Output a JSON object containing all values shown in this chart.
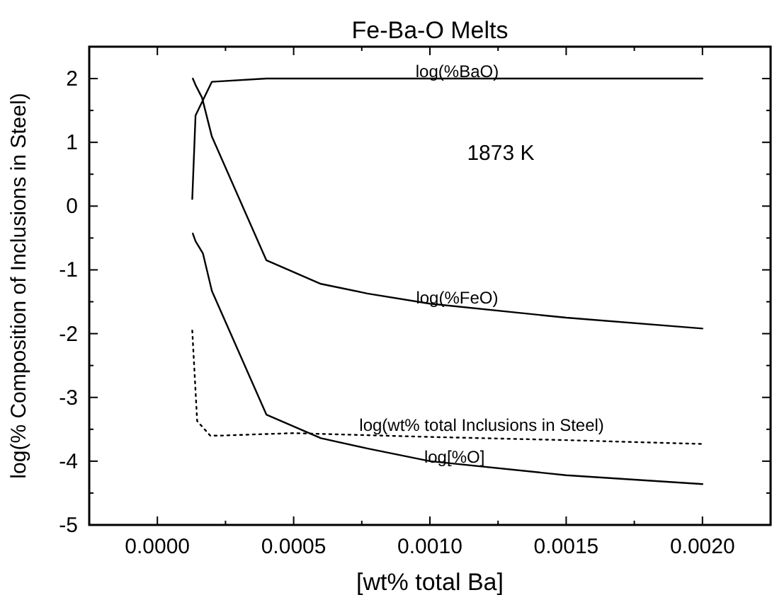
{
  "chart_data": {
    "type": "line",
    "title": "Fe-Ba-O Melts",
    "xlabel": "[wt% total Ba]",
    "ylabel": "log(% Composition of Inclusions in Steel)",
    "xlim": [
      -0.00025,
      0.00225
    ],
    "xticks": [
      {
        "value": -0.00025,
        "label": null
      },
      {
        "value": 0,
        "label": "0.0000"
      },
      {
        "value": 0.00025,
        "label": null
      },
      {
        "value": 0.0005,
        "label": "0.0005"
      },
      {
        "value": 0.00075,
        "label": null
      },
      {
        "value": 0.001,
        "label": "0.0010"
      },
      {
        "value": 0.00125,
        "label": null
      },
      {
        "value": 0.0015,
        "label": "0.0015"
      },
      {
        "value": 0.00175,
        "label": null
      },
      {
        "value": 0.002,
        "label": "0.0020"
      },
      {
        "value": 0.00225,
        "label": null
      }
    ],
    "ylim": [
      -5,
      2.5
    ],
    "yticks": [
      -5,
      {
        "value": -4.5,
        "label": null
      },
      -4,
      {
        "value": -3.5,
        "label": null
      },
      -3,
      {
        "value": -2.5,
        "label": null
      },
      -2,
      {
        "value": -1.5,
        "label": null
      },
      -1,
      {
        "value": -0.5,
        "label": null
      },
      0,
      {
        "value": 0.5,
        "label": null
      },
      1,
      {
        "value": 1.5,
        "label": null
      },
      2,
      {
        "value": 2.5,
        "label": null
      }
    ],
    "grid": false,
    "marker": "none",
    "series": [
      {
        "color": "#000000",
        "x": [
          0.000128,
          0.00014,
          0.0002,
          0.0004,
          0.0006,
          0.001,
          0.0015,
          0.002
        ],
        "values": [
          0.11,
          1.42,
          1.95,
          2.0,
          2.0,
          2.0,
          2.0,
          2.0
        ]
      },
      {
        "color": "#000000",
        "x": [
          0.00013,
          0.00014,
          0.000164,
          0.0002,
          0.0004,
          0.0006,
          0.00077,
          0.001,
          0.0015,
          0.002
        ],
        "values": [
          2.0,
          1.9,
          1.7,
          1.09,
          -0.85,
          -1.22,
          -1.37,
          -1.53,
          -1.75,
          -1.92
        ]
      },
      {
        "color": "#000000",
        "line_style": "dotted",
        "x": [
          0.000128,
          0.000146,
          0.000194,
          0.000224,
          0.0005,
          0.001,
          0.0015,
          0.002
        ],
        "values": [
          -1.95,
          -3.37,
          -3.6,
          -3.6,
          -3.56,
          -3.62,
          -3.67,
          -3.73
        ]
      },
      {
        "color": "#000000",
        "x": [
          0.00013,
          0.00014,
          0.000167,
          0.0002,
          0.0004,
          0.0006,
          0.00077,
          0.001,
          0.0015,
          0.002
        ],
        "values": [
          -0.43,
          -0.55,
          -0.74,
          -1.33,
          -3.27,
          -3.64,
          -3.8,
          -4.0,
          -4.22,
          -4.36
        ]
      }
    ],
    "annotations": [
      {
        "text": "log(%BaO)",
        "x": 0.0011,
        "y": 2.0
      },
      "1873 K",
      {
        "text": "log(%FeO)",
        "x": 0.0011,
        "y": -1.55
      },
      {
        "text": "log(wt% total Inclusions in Steel)",
        "x": 0.00119,
        "y": -3.55
      },
      {
        "text": "log[%O]",
        "x": 0.00109,
        "y": -4.05
      }
    ]
  }
}
